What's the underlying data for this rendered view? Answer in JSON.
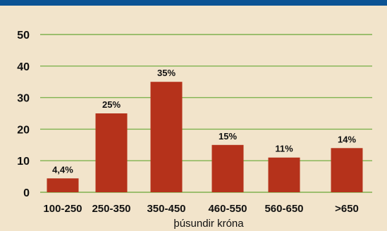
{
  "colors": {
    "background": "#f2e4cb",
    "top_band": "#0b5394",
    "bar": "#b5321b",
    "grid": "#7fb24f"
  },
  "chart_data": {
    "type": "bar",
    "title": "",
    "xlabel": "þúsundir króna",
    "ylabel": "",
    "categories": [
      "100-250",
      "250-350",
      "350-450",
      "460-550",
      "560-650",
      ">650"
    ],
    "values": [
      4.4,
      25,
      35,
      15,
      11,
      14
    ],
    "data_labels": [
      "4,4%",
      "25%",
      "35%",
      "15%",
      "11%",
      "14%"
    ],
    "yticks": [
      0,
      10,
      20,
      30,
      40,
      50
    ],
    "ylim": [
      0,
      50
    ],
    "grid": true,
    "legend": "none"
  }
}
